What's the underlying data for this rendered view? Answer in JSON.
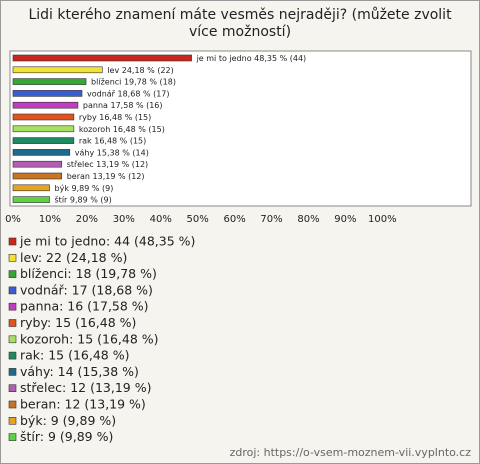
{
  "chart_data": {
    "type": "hbar",
    "title": "Lidi kterého znamení máte vesměs nejraději? (můžete zvolit více možností)",
    "categories": [
      "je mi to jedno",
      "lev",
      "blíženci",
      "vodnář",
      "panna",
      "ryby",
      "kozoroh",
      "rak",
      "váhy",
      "střelec",
      "beran",
      "býk",
      "štír"
    ],
    "values": [
      48.35,
      24.18,
      19.78,
      18.68,
      17.58,
      16.48,
      16.48,
      16.48,
      15.38,
      13.19,
      13.19,
      9.89,
      9.89
    ],
    "value_labels": [
      "48,35 % (44)",
      "24,18 % (22)",
      "19,78 % (18)",
      "18,68 % (17)",
      "17,58 % (16)",
      "16,48 % (15)",
      "16,48 % (15)",
      "16,48 % (15)",
      "15,38 % (14)",
      "13,19 % (12)",
      "13,19 % (12)",
      "9,89 % (9)",
      "9,89 % (9)"
    ],
    "colors": [
      "#c8281c",
      "#f2e234",
      "#34a834",
      "#3c5cd2",
      "#c23cc2",
      "#e0521e",
      "#a8e064",
      "#1f8a62",
      "#1f6a8a",
      "#b45cb4",
      "#c87422",
      "#e6a422",
      "#5cd244"
    ],
    "legend_labels": [
      "je mi to jedno: 44 (48,35 %)",
      "lev: 22 (24,18 %)",
      "blíženci: 18 (19,78 %)",
      "vodnář: 17 (18,68 %)",
      "panna: 16 (17,58 %)",
      "ryby: 15 (16,48 %)",
      "kozoroh: 15 (16,48 %)",
      "rak: 15 (16,48 %)",
      "váhy: 14 (15,38 %)",
      "střelec: 12 (13,19 %)",
      "beran: 12 (13,19 %)",
      "býk: 9 (9,89 %)",
      "štír: 9 (9,89 %)"
    ],
    "xlim": [
      0,
      124
    ],
    "xticks": [
      {
        "value": 0,
        "label": "0%"
      },
      {
        "value": 10,
        "label": "10%"
      },
      {
        "value": 20,
        "label": "20%"
      },
      {
        "value": 30,
        "label": "30%"
      },
      {
        "value": 40,
        "label": "40%"
      },
      {
        "value": 50,
        "label": "50%"
      },
      {
        "value": 60,
        "label": "60%"
      },
      {
        "value": 70,
        "label": "70%"
      },
      {
        "value": 80,
        "label": "80%"
      },
      {
        "value": 90,
        "label": "90%"
      },
      {
        "value": 100,
        "label": "100%"
      }
    ],
    "grid": false,
    "source": "zdroj: https://o-vsem-moznem-vii.vyplnto.cz"
  }
}
